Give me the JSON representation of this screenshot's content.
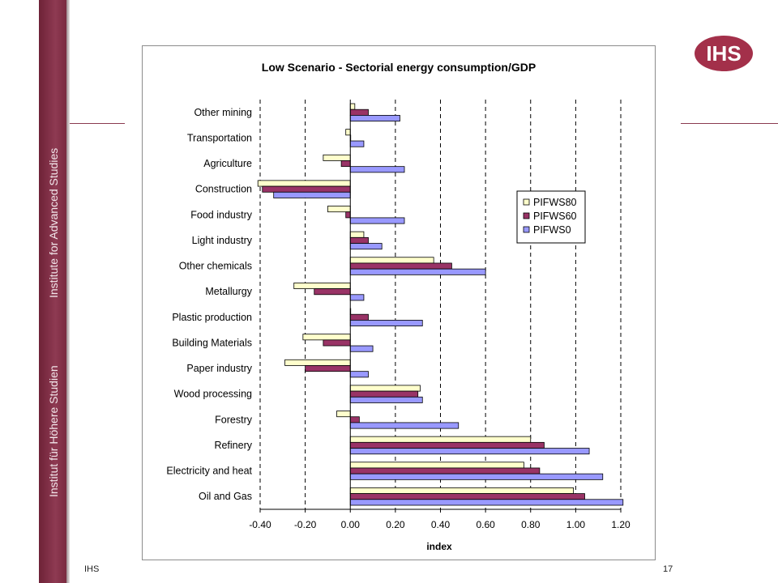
{
  "sidebar": {
    "text_top": "Institute for Advanced Studies",
    "text_bottom": "Institut für Höhere Studien"
  },
  "footer": {
    "left": "IHS",
    "page_number": "17"
  },
  "logo": {
    "text": "IHS",
    "color": "#a3304a"
  },
  "chart_data": {
    "type": "bar",
    "orientation": "horizontal",
    "title": "Low Scenario - Sectorial energy consumption/GDP",
    "xlabel": "index",
    "ylabel": "",
    "xlim": [
      -0.4,
      1.2
    ],
    "xticks": [
      "-0.40",
      "-0.20",
      "0.00",
      "0.20",
      "0.40",
      "0.60",
      "0.80",
      "1.00",
      "1.20"
    ],
    "grid": "dashed vertical",
    "legend_position": "right",
    "categories": [
      "Other mining",
      "Transportation",
      "Agriculture",
      "Construction",
      "Food industry",
      "Light industry",
      "Other chemicals",
      "Metallurgy",
      "Plastic production",
      "Building Materials",
      "Paper industry",
      "Wood processing",
      "Forestry",
      "Refinery",
      "Electricity and heat",
      "Oil and Gas"
    ],
    "series": [
      {
        "name": "PIFWS80",
        "color": "#ffffcc",
        "values": [
          0.02,
          -0.02,
          -0.12,
          -0.41,
          -0.1,
          0.06,
          0.37,
          -0.25,
          0.0,
          -0.21,
          -0.29,
          0.31,
          -0.06,
          0.8,
          0.77,
          0.99
        ]
      },
      {
        "name": "PIFWS60",
        "color": "#993366",
        "values": [
          0.08,
          0.0,
          -0.04,
          -0.39,
          -0.02,
          0.08,
          0.45,
          -0.16,
          0.08,
          -0.12,
          -0.2,
          0.3,
          0.04,
          0.86,
          0.84,
          1.04
        ]
      },
      {
        "name": "PIFWS0",
        "color": "#9999ff",
        "values": [
          0.22,
          0.06,
          0.24,
          -0.34,
          0.24,
          0.14,
          0.6,
          0.06,
          0.32,
          0.1,
          0.08,
          0.32,
          0.48,
          1.06,
          1.12,
          1.21
        ]
      }
    ]
  }
}
